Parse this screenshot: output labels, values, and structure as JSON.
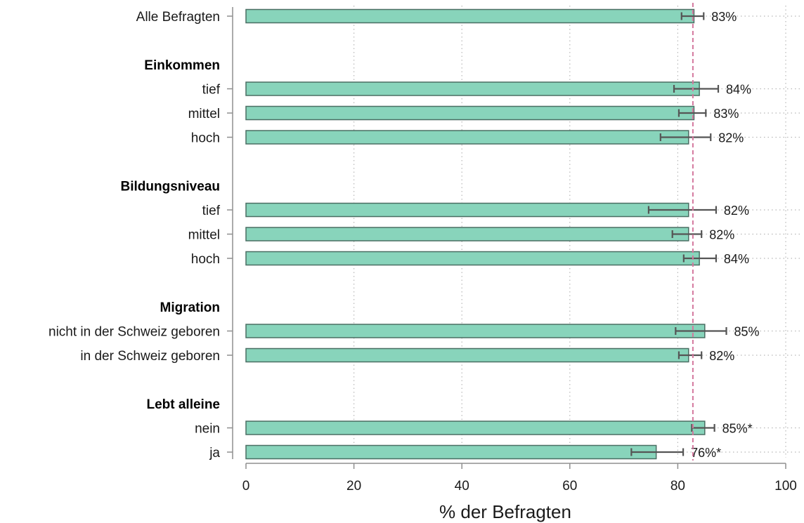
{
  "chart_data": {
    "type": "bar",
    "orientation": "horizontal",
    "xlabel": "% der Befragten",
    "xlim": [
      0,
      100
    ],
    "xticks": [
      0,
      20,
      40,
      60,
      80,
      100
    ],
    "reference_line": 82.8,
    "grid": "vertical dotted",
    "colors": {
      "bar_fill": "#88d4bb",
      "bar_stroke": "#4a6e63",
      "errorbar": "#555555",
      "reference_line": "#d4789e",
      "grid": "#b8b8b8"
    },
    "rows": [
      {
        "kind": "category",
        "label": "Alle Befragten",
        "value": 83,
        "err_low": 80.7,
        "err_high": 84.8,
        "value_label": "83%"
      },
      {
        "kind": "spacer"
      },
      {
        "kind": "group",
        "label": "Einkommen"
      },
      {
        "kind": "category",
        "label": "tief",
        "value": 84,
        "err_low": 79.3,
        "err_high": 87.5,
        "value_label": "84%"
      },
      {
        "kind": "category",
        "label": "mittel",
        "value": 83,
        "err_low": 80.2,
        "err_high": 85.2,
        "value_label": "83%"
      },
      {
        "kind": "category",
        "label": "hoch",
        "value": 82,
        "err_low": 76.8,
        "err_high": 86.1,
        "value_label": "82%"
      },
      {
        "kind": "spacer"
      },
      {
        "kind": "group",
        "label": "Bildungsniveau"
      },
      {
        "kind": "category",
        "label": "tief",
        "value": 82,
        "err_low": 74.6,
        "err_high": 87.1,
        "value_label": "82%"
      },
      {
        "kind": "category",
        "label": "mittel",
        "value": 82,
        "err_low": 79.0,
        "err_high": 84.4,
        "value_label": "82%"
      },
      {
        "kind": "category",
        "label": "hoch",
        "value": 84,
        "err_low": 81.1,
        "err_high": 87.1,
        "value_label": "84%"
      },
      {
        "kind": "spacer"
      },
      {
        "kind": "group",
        "label": "Migration"
      },
      {
        "kind": "category",
        "label": "nicht in der Schweiz geboren",
        "value": 85,
        "err_low": 79.6,
        "err_high": 89.0,
        "value_label": "85%"
      },
      {
        "kind": "category",
        "label": "in der Schweiz geboren",
        "value": 82,
        "err_low": 80.2,
        "err_high": 84.4,
        "value_label": "82%"
      },
      {
        "kind": "spacer"
      },
      {
        "kind": "group",
        "label": "Lebt alleine"
      },
      {
        "kind": "category",
        "label": "nein",
        "value": 85,
        "err_low": 82.6,
        "err_high": 86.8,
        "value_label": "85%*"
      },
      {
        "kind": "category",
        "label": "ja",
        "value": 76,
        "err_low": 71.4,
        "err_high": 81.0,
        "value_label": "76%*"
      }
    ]
  }
}
